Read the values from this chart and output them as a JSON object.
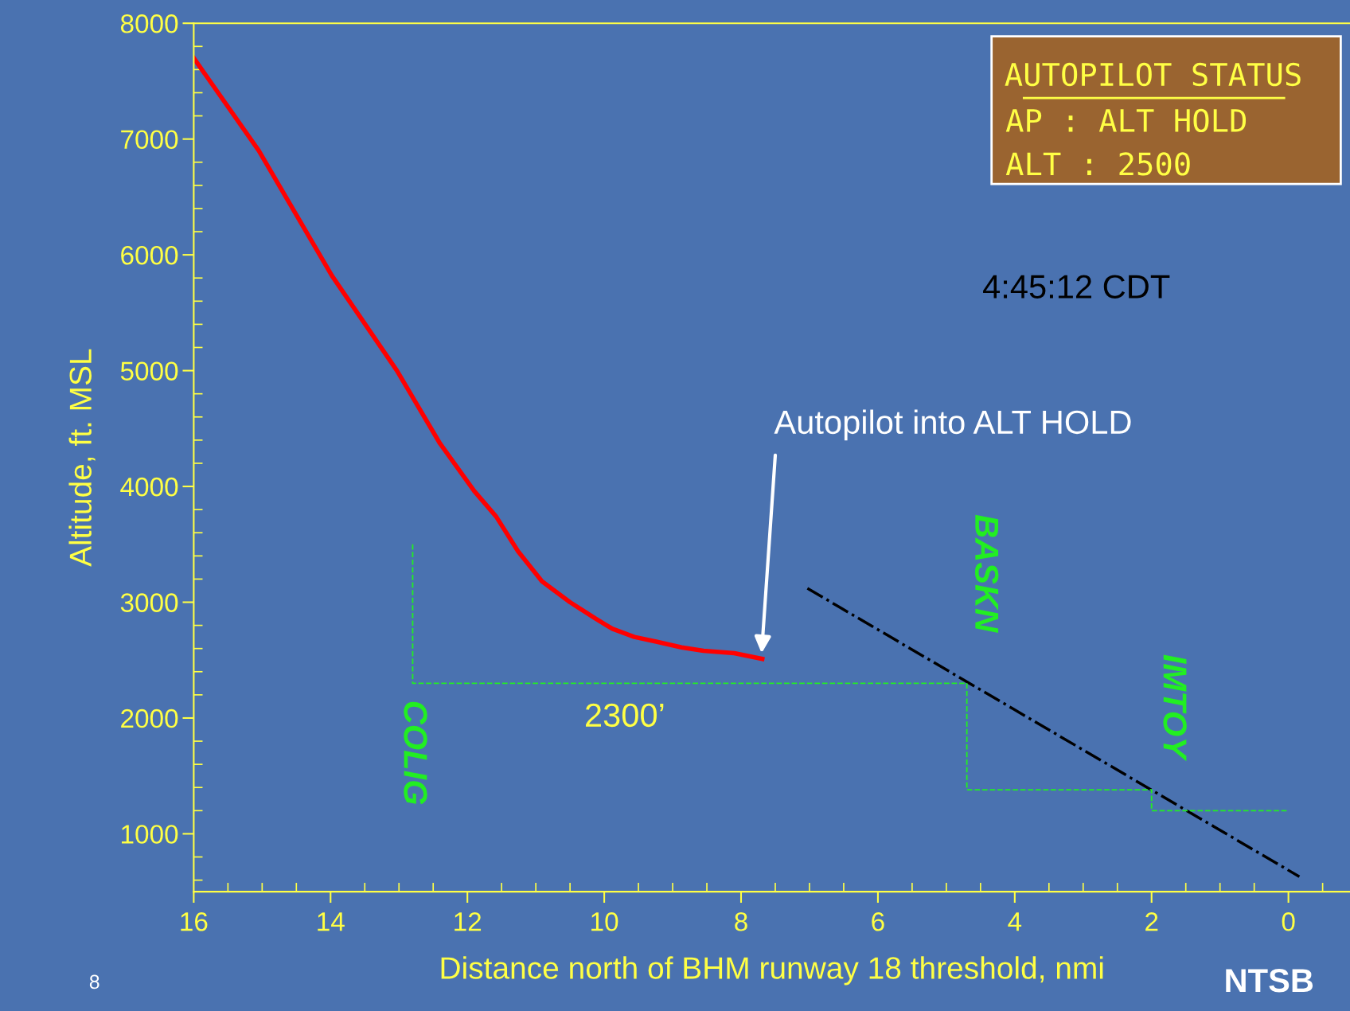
{
  "chart_data": {
    "type": "line",
    "xlabel": "Distance north of BHM runway 18 threshold, nmi",
    "ylabel": "Altitude, ft. MSL",
    "xlim": [
      16,
      -0.9
    ],
    "ylim": [
      500,
      8000
    ],
    "xticks": [
      16,
      14,
      12,
      10,
      8,
      6,
      4,
      2,
      0
    ],
    "yticks": [
      1000,
      2000,
      3000,
      4000,
      5000,
      6000,
      7000,
      8000
    ],
    "grid": false,
    "legend": false,
    "series": [
      {
        "color": "#ff0000",
        "x": [
          16,
          15.05,
          13.98,
          13.03,
          12.4,
          11.9,
          11.58,
          11.26,
          10.91,
          10.5,
          10.13,
          9.88,
          9.56,
          9.24,
          8.87,
          8.55,
          8.1,
          7.69
        ],
        "values": [
          7700,
          6900,
          5820,
          5000,
          4370,
          3960,
          3740,
          3440,
          3180,
          3000,
          2860,
          2770,
          2700,
          2660,
          2610,
          2580,
          2560,
          2510
        ],
        "line_style": "solid"
      },
      {
        "color": "#000000",
        "x": [
          7.03,
          -0.16
        ],
        "values": [
          3120,
          630
        ],
        "line_style": "dashdot"
      },
      {
        "color": "#22ee22",
        "x": [
          12.8,
          12.8,
          4.7,
          4.7,
          2.0,
          2.0,
          0
        ],
        "values": [
          3500,
          2300,
          2300,
          1380,
          1380,
          1200,
          1200
        ],
        "line_style": "dashed"
      }
    ],
    "annotations": [
      "COLIG",
      "BASKN",
      "IMTOY",
      "2300’",
      "Autopilot into ALT HOLD",
      "4:45:12 CDT",
      "AUTOPILOT STATUS",
      "AP : ALT HOLD",
      "ALT : 2500",
      "8",
      "NTSB"
    ]
  }
}
